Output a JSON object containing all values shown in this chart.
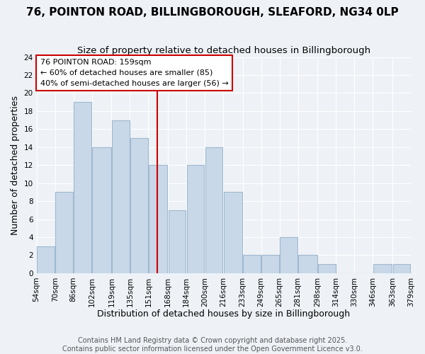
{
  "title_line1": "76, POINTON ROAD, BILLINGBOROUGH, SLEAFORD, NG34 0LP",
  "title_line2": "Size of property relative to detached houses in Billingborough",
  "xlabel": "Distribution of detached houses by size in Billingborough",
  "ylabel": "Number of detached properties",
  "bin_edges": [
    54,
    70,
    86,
    102,
    119,
    135,
    151,
    168,
    184,
    200,
    216,
    233,
    249,
    265,
    281,
    298,
    314,
    330,
    346,
    363,
    379
  ],
  "bar_heights": [
    3,
    9,
    19,
    14,
    17,
    15,
    12,
    7,
    12,
    14,
    9,
    2,
    2,
    4,
    2,
    1,
    0,
    0,
    1,
    1
  ],
  "bar_color": "#c8d8e8",
  "bar_edge_color": "#a0b8d0",
  "vline_x": 159,
  "vline_color": "#cc0000",
  "annotation_title": "76 POINTON ROAD: 159sqm",
  "annotation_line2": "← 60% of detached houses are smaller (85)",
  "annotation_line3": "40% of semi-detached houses are larger (56) →",
  "annotation_box_color": "#ffffff",
  "annotation_box_edge": "#cc0000",
  "ylim": [
    0,
    24
  ],
  "yticks": [
    0,
    2,
    4,
    6,
    8,
    10,
    12,
    14,
    16,
    18,
    20,
    22,
    24
  ],
  "tick_labels": [
    "54sqm",
    "70sqm",
    "86sqm",
    "102sqm",
    "119sqm",
    "135sqm",
    "151sqm",
    "168sqm",
    "184sqm",
    "200sqm",
    "216sqm",
    "233sqm",
    "249sqm",
    "265sqm",
    "281sqm",
    "298sqm",
    "314sqm",
    "330sqm",
    "346sqm",
    "363sqm",
    "379sqm"
  ],
  "footer_line1": "Contains HM Land Registry data © Crown copyright and database right 2025.",
  "footer_line2": "Contains public sector information licensed under the Open Government Licence v3.0.",
  "background_color": "#eef2f7",
  "grid_color": "#ffffff",
  "title_fontsize": 11,
  "subtitle_fontsize": 9.5,
  "axis_label_fontsize": 9,
  "tick_fontsize": 7.5,
  "footer_fontsize": 7
}
